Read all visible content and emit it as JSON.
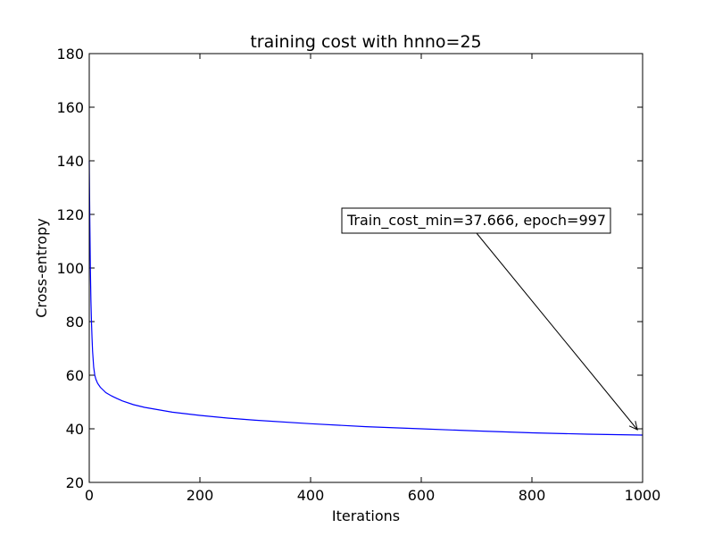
{
  "chart_data": {
    "type": "line",
    "title": "training cost with hnno=25",
    "xlabel": "Iterations",
    "ylabel": "Cross-entropy",
    "xlim": [
      0,
      1000
    ],
    "ylim": [
      20,
      180
    ],
    "xticks": [
      0,
      200,
      400,
      600,
      800,
      1000
    ],
    "yticks": [
      20,
      40,
      60,
      80,
      100,
      120,
      140,
      160,
      180
    ],
    "grid": false,
    "series": [
      {
        "color": "#0000ff",
        "x": [
          0,
          1,
          2,
          3,
          4,
          5,
          6,
          8,
          10,
          12,
          15,
          20,
          25,
          30,
          40,
          50,
          60,
          80,
          100,
          150,
          200,
          250,
          300,
          400,
          500,
          600,
          700,
          800,
          900,
          997,
          1000
        ],
        "y": [
          140,
          118,
          100,
          88,
          80,
          74,
          69,
          63,
          60,
          58.5,
          57,
          55.5,
          54.5,
          53.5,
          52.3,
          51.3,
          50.4,
          49,
          48,
          46.2,
          45,
          44,
          43.2,
          41.9,
          40.8,
          40,
          39.2,
          38.5,
          38.0,
          37.67,
          37.66
        ]
      }
    ],
    "annotation": {
      "text": "Train_cost_min=37.666, epoch=997",
      "point": [
        997,
        37.666
      ],
      "text_anchor": [
        700,
        116
      ]
    }
  }
}
